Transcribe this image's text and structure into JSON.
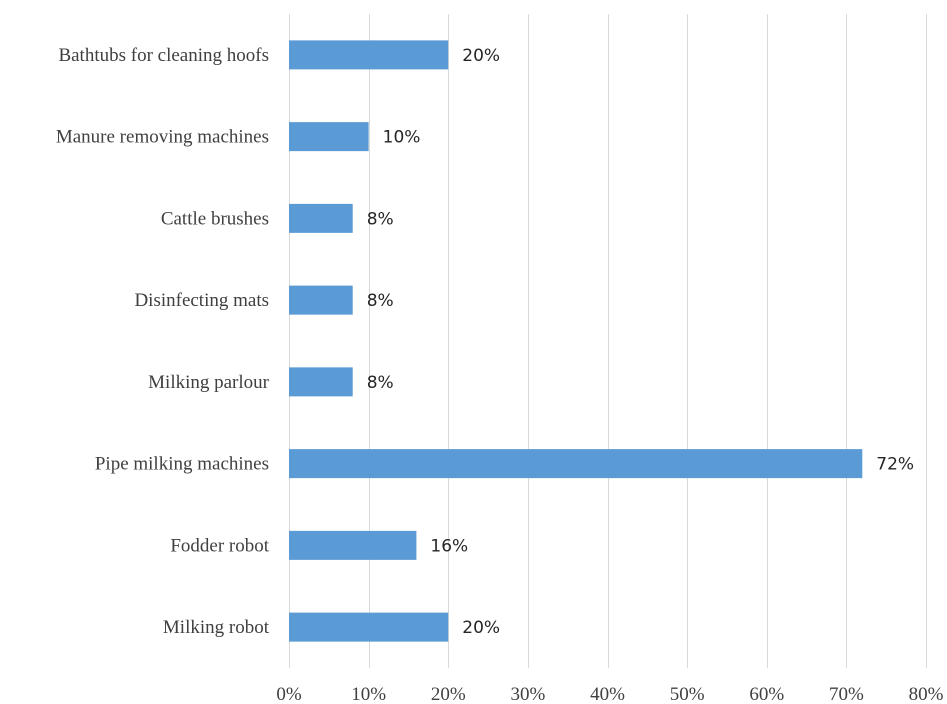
{
  "chart_data": {
    "type": "bar",
    "orientation": "horizontal",
    "title": "",
    "xlabel": "",
    "ylabel": "",
    "categories": [
      "Bathtubs for cleaning hoofs",
      "Manure removing machines",
      "Cattle brushes",
      "Disinfecting mats",
      "Milking parlour",
      "Pipe milking machines",
      "Fodder robot",
      "Milking robot"
    ],
    "values": [
      20,
      10,
      8,
      8,
      8,
      72,
      16,
      20
    ],
    "data_labels": [
      "20%",
      "10%",
      "8%",
      "8%",
      "8%",
      "72%",
      "16%",
      "20%"
    ],
    "xlim": [
      0,
      80
    ],
    "x_ticks": [
      0,
      10,
      20,
      30,
      40,
      50,
      60,
      70,
      80
    ],
    "x_tick_labels": [
      "0%",
      "10%",
      "20%",
      "30%",
      "40%",
      "50%",
      "60%",
      "70%",
      "80%"
    ],
    "grid": true,
    "legend": "none",
    "bar_color": "#5b9bd5"
  }
}
